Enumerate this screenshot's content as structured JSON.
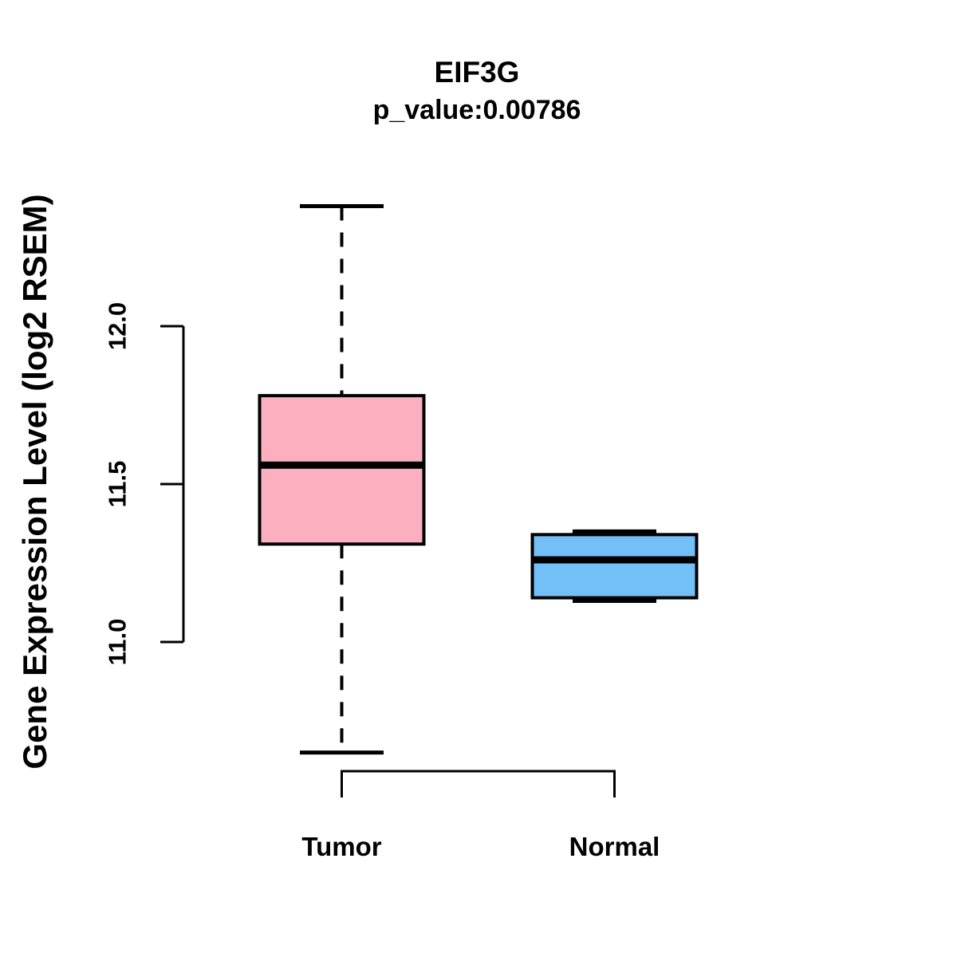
{
  "chart_data": {
    "type": "boxplot",
    "title": "EIF3G",
    "subtitle": "p_value:0.00786",
    "ylabel": "Gene Expression Level (log2 RSEM)",
    "xlabel": "",
    "ylim": [
      10.5,
      12.5
    ],
    "ytick_values": [
      11.0,
      11.5,
      12.0
    ],
    "ytick_labels": [
      "11.0",
      "11.5",
      "12.0"
    ],
    "categories": [
      "Tumor",
      "Normal"
    ],
    "grid": false,
    "legend": "none",
    "series": [
      {
        "name": "Tumor",
        "color": "#FCB0BF",
        "whisker_low": 10.65,
        "q1": 11.31,
        "median": 11.56,
        "q3": 11.78,
        "whisker_high": 12.38
      },
      {
        "name": "Normal",
        "color": "#73C0F8",
        "whisker_low": 11.13,
        "q1": 11.14,
        "median": 11.26,
        "q3": 11.34,
        "whisker_high": 11.35
      }
    ]
  },
  "colors": {
    "axis": "#000000",
    "text": "#000000"
  }
}
